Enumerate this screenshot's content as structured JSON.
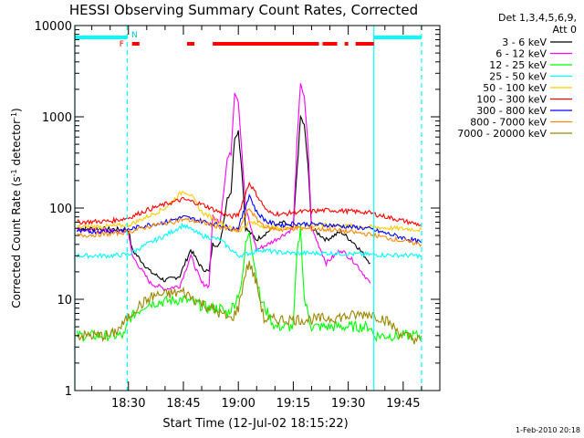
{
  "chart_data": {
    "type": "line",
    "title": "HESSI Observing Summary Count Rates, Corrected",
    "xlabel": "Start Time (12-Jul-02 18:15:22)",
    "ylabel_main": "Corrected Count Rate (s",
    "ylabel_sup1": "-1",
    "ylabel_mid": " detector",
    "ylabel_sup2": "-1",
    "ylabel_end": ")",
    "yscale": "log",
    "ylim": [
      1,
      10000
    ],
    "xlim": [
      "18:15:22",
      "19:55:00"
    ],
    "yticks": [
      {
        "value": 1,
        "label": "1"
      },
      {
        "value": 10,
        "label": "10"
      },
      {
        "value": 100,
        "label": "100"
      },
      {
        "value": 1000,
        "label": "1000"
      },
      {
        "value": 10000,
        "label": "10000"
      }
    ],
    "xticks": [
      {
        "value": "18:30",
        "label": "18:30"
      },
      {
        "value": "18:45",
        "label": "18:45"
      },
      {
        "value": "19:00",
        "label": "19:00"
      },
      {
        "value": "19:15",
        "label": "19:15"
      },
      {
        "value": "19:30",
        "label": "19:30"
      },
      {
        "value": "19:45",
        "label": "19:45"
      }
    ],
    "legend": {
      "header_line1": "Det 1,3,4,5,6,9,",
      "header_line2": "Att 0",
      "position": "top-right outside plot"
    },
    "series": [
      {
        "name": "3 - 6 keV",
        "color": "#000000",
        "points": [
          [
            "18:16",
            60
          ],
          [
            "18:30",
            58
          ],
          [
            "18:31",
            35
          ],
          [
            "18:36",
            20
          ],
          [
            "18:40",
            16
          ],
          [
            "18:44",
            18
          ],
          [
            "18:47",
            35
          ],
          [
            "18:50",
            22
          ],
          [
            "18:52",
            20
          ],
          [
            "18:53",
            40
          ],
          [
            "18:55",
            40
          ],
          [
            "18:57",
            130
          ],
          [
            "18:58",
            150
          ],
          [
            "18:59",
            600
          ],
          [
            "19:00",
            700
          ],
          [
            "19:01",
            250
          ],
          [
            "19:02",
            60
          ],
          [
            "19:05",
            45
          ],
          [
            "19:08",
            55
          ],
          [
            "19:12",
            70
          ],
          [
            "19:15",
            60
          ],
          [
            "19:16",
            250
          ],
          [
            "19:17",
            1000
          ],
          [
            "19:18",
            800
          ],
          [
            "19:19",
            300
          ],
          [
            "19:20",
            60
          ],
          [
            "19:24",
            45
          ],
          [
            "19:28",
            55
          ],
          [
            "19:32",
            40
          ],
          [
            "19:36",
            25
          ]
        ]
      },
      {
        "name": "6 - 12 keV",
        "color": "#ff00ff",
        "points": [
          [
            "18:16",
            58
          ],
          [
            "18:30",
            55
          ],
          [
            "18:31",
            30
          ],
          [
            "18:36",
            15
          ],
          [
            "18:40",
            13
          ],
          [
            "18:44",
            14
          ],
          [
            "18:47",
            30
          ],
          [
            "18:50",
            15
          ],
          [
            "18:52",
            14
          ],
          [
            "18:53",
            80
          ],
          [
            "18:55",
            70
          ],
          [
            "18:57",
            350
          ],
          [
            "18:58",
            400
          ],
          [
            "18:59",
            1900
          ],
          [
            "19:00",
            1500
          ],
          [
            "19:01",
            400
          ],
          [
            "19:02",
            100
          ],
          [
            "19:05",
            35
          ],
          [
            "19:08",
            40
          ],
          [
            "19:12",
            50
          ],
          [
            "19:15",
            60
          ],
          [
            "19:16",
            500
          ],
          [
            "19:17",
            2400
          ],
          [
            "19:18",
            1600
          ],
          [
            "19:19",
            500
          ],
          [
            "19:20",
            60
          ],
          [
            "19:24",
            25
          ],
          [
            "19:28",
            35
          ],
          [
            "19:32",
            25
          ],
          [
            "19:36",
            15
          ]
        ]
      },
      {
        "name": "12 - 25 keV",
        "color": "#00ff00",
        "points": [
          [
            "18:16",
            4
          ],
          [
            "18:29",
            4
          ],
          [
            "18:30",
            6
          ],
          [
            "18:35",
            9
          ],
          [
            "18:45",
            10
          ],
          [
            "18:52",
            8
          ],
          [
            "18:55",
            8
          ],
          [
            "18:57",
            7
          ],
          [
            "18:59",
            9
          ],
          [
            "19:01",
            15
          ],
          [
            "19:02",
            40
          ],
          [
            "19:03",
            60
          ],
          [
            "19:04",
            30
          ],
          [
            "19:06",
            10
          ],
          [
            "19:10",
            5
          ],
          [
            "19:15",
            5
          ],
          [
            "19:16",
            30
          ],
          [
            "19:17",
            60
          ],
          [
            "19:18",
            10
          ],
          [
            "19:20",
            5
          ],
          [
            "19:30",
            5
          ],
          [
            "19:36",
            5
          ],
          [
            "19:37",
            4
          ],
          [
            "19:50",
            4
          ]
        ]
      },
      {
        "name": "25 - 50 keV",
        "color": "#00ffff",
        "points": [
          [
            "18:16",
            30
          ],
          [
            "18:25",
            30
          ],
          [
            "18:30",
            31
          ],
          [
            "18:35",
            40
          ],
          [
            "18:40",
            50
          ],
          [
            "18:45",
            65
          ],
          [
            "18:50",
            50
          ],
          [
            "18:55",
            45
          ],
          [
            "18:58",
            35
          ],
          [
            "19:00",
            30
          ],
          [
            "19:03",
            32
          ],
          [
            "19:06",
            35
          ],
          [
            "19:10",
            33
          ],
          [
            "19:15",
            32
          ],
          [
            "19:25",
            32
          ],
          [
            "19:35",
            31
          ],
          [
            "19:50",
            30
          ]
        ]
      },
      {
        "name": "50 - 100 keV",
        "color": "#ffcc00",
        "points": [
          [
            "18:16",
            62
          ],
          [
            "18:25",
            63
          ],
          [
            "18:30",
            65
          ],
          [
            "18:35",
            80
          ],
          [
            "18:40",
            100
          ],
          [
            "18:45",
            155
          ],
          [
            "18:47",
            140
          ],
          [
            "18:50",
            90
          ],
          [
            "18:55",
            70
          ],
          [
            "18:58",
            60
          ],
          [
            "19:00",
            55
          ],
          [
            "19:03",
            70
          ],
          [
            "19:06",
            65
          ],
          [
            "19:10",
            60
          ],
          [
            "19:15",
            62
          ],
          [
            "19:25",
            65
          ],
          [
            "19:35",
            62
          ],
          [
            "19:50",
            58
          ]
        ]
      },
      {
        "name": "100 - 300 keV",
        "color": "#ff0000",
        "points": [
          [
            "18:16",
            70
          ],
          [
            "18:25",
            72
          ],
          [
            "18:30",
            78
          ],
          [
            "18:35",
            95
          ],
          [
            "18:40",
            110
          ],
          [
            "18:45",
            125
          ],
          [
            "18:50",
            110
          ],
          [
            "18:55",
            90
          ],
          [
            "18:58",
            80
          ],
          [
            "19:00",
            85
          ],
          [
            "19:03",
            190
          ],
          [
            "19:05",
            140
          ],
          [
            "19:08",
            90
          ],
          [
            "19:12",
            85
          ],
          [
            "19:15",
            90
          ],
          [
            "19:25",
            95
          ],
          [
            "19:35",
            90
          ],
          [
            "19:50",
            65
          ]
        ]
      },
      {
        "name": "300 - 800 keV",
        "color": "#0000ff",
        "points": [
          [
            "18:16",
            55
          ],
          [
            "18:25",
            56
          ],
          [
            "18:30",
            58
          ],
          [
            "18:35",
            65
          ],
          [
            "18:40",
            70
          ],
          [
            "18:45",
            80
          ],
          [
            "18:50",
            72
          ],
          [
            "18:55",
            65
          ],
          [
            "18:58",
            60
          ],
          [
            "19:00",
            60
          ],
          [
            "19:03",
            140
          ],
          [
            "19:05",
            90
          ],
          [
            "19:08",
            70
          ],
          [
            "19:12",
            65
          ],
          [
            "19:15",
            68
          ],
          [
            "19:25",
            65
          ],
          [
            "19:35",
            60
          ],
          [
            "19:50",
            42
          ]
        ]
      },
      {
        "name": "800 - 7000 keV",
        "color": "#ff8800",
        "points": [
          [
            "18:16",
            50
          ],
          [
            "18:25",
            52
          ],
          [
            "18:30",
            55
          ],
          [
            "18:35",
            62
          ],
          [
            "18:40",
            68
          ],
          [
            "18:45",
            75
          ],
          [
            "18:50",
            70
          ],
          [
            "18:55",
            62
          ],
          [
            "18:58",
            57
          ],
          [
            "19:00",
            56
          ],
          [
            "19:03",
            100
          ],
          [
            "19:05",
            75
          ],
          [
            "19:08",
            60
          ],
          [
            "19:12",
            58
          ],
          [
            "19:15",
            60
          ],
          [
            "19:25",
            58
          ],
          [
            "19:35",
            52
          ],
          [
            "19:50",
            40
          ]
        ]
      },
      {
        "name": "7000 - 20000 keV",
        "color": "#998800",
        "points": [
          [
            "18:16",
            4
          ],
          [
            "18:25",
            4
          ],
          [
            "18:28",
            5
          ],
          [
            "18:32",
            8
          ],
          [
            "18:37",
            11
          ],
          [
            "18:45",
            12
          ],
          [
            "18:50",
            9
          ],
          [
            "18:55",
            7
          ],
          [
            "18:58",
            6
          ],
          [
            "19:00",
            8
          ],
          [
            "19:02",
            20
          ],
          [
            "19:03",
            25
          ],
          [
            "19:05",
            15
          ],
          [
            "19:07",
            6
          ],
          [
            "19:10",
            6
          ],
          [
            "19:20",
            6
          ],
          [
            "19:30",
            6.5
          ],
          [
            "19:36",
            7
          ],
          [
            "19:40",
            6
          ],
          [
            "19:45",
            4
          ],
          [
            "19:50",
            3.5
          ]
        ]
      }
    ],
    "flag_bars": {
      "cyan_label": "N",
      "red_label": "F",
      "cyan": [
        [
          "18:15:22",
          "18:29:40"
        ],
        [
          "19:37:00",
          "19:50:00"
        ]
      ],
      "red": [
        [
          "18:31:00",
          "18:33:00"
        ],
        [
          "18:46:00",
          "18:48:00"
        ],
        [
          "18:53:00",
          "19:22:00"
        ],
        [
          "19:23:00",
          "19:27:00"
        ],
        [
          "19:29:00",
          "19:30:00"
        ],
        [
          "19:32:00",
          "19:37:00"
        ]
      ]
    },
    "vlines": [
      {
        "time": "18:15:22",
        "style": "solid",
        "color": "#00ffff"
      },
      {
        "time": "18:29:40",
        "style": "dashed",
        "color": "#00ffff"
      },
      {
        "time": "19:37:00",
        "style": "solid",
        "color": "#00ffff"
      },
      {
        "time": "19:50:00",
        "style": "dashed",
        "color": "#00ffff"
      }
    ]
  },
  "footer_date": "1-Feb-2010 20:18"
}
